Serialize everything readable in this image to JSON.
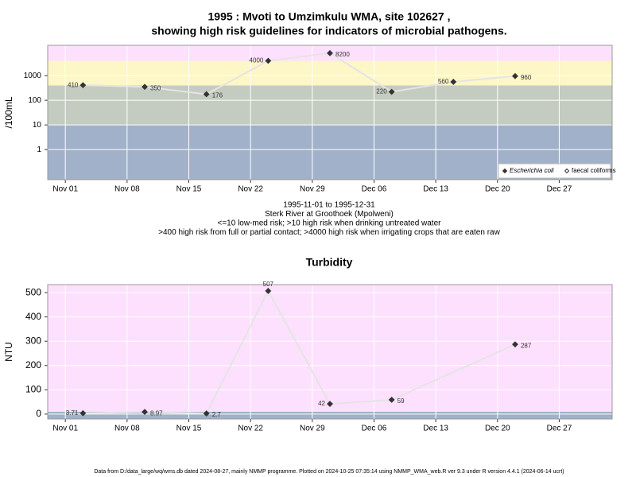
{
  "chart_data": [
    {
      "type": "line",
      "title": [
        "1995 : Mvoti to Umzimkulu WMA, site 102627 ,",
        "showing high risk guidelines for indicators of microbial pathogens."
      ],
      "ylabel": "/100mL",
      "log_y": true,
      "grid": true,
      "legend": "bottom-right",
      "line_color": "#e4e4e4",
      "bands": {
        "breaks": [
          10,
          400,
          4000
        ],
        "colors": [
          "#a1b1c9",
          "#c4ccc1",
          "#fdf6c6",
          "#fde0fd"
        ]
      },
      "x": [
        "1995-11-03",
        "1995-11-10",
        "1995-11-17",
        "1995-11-24",
        "1995-12-01",
        "1995-12-08",
        "1995-12-15",
        "1995-12-22"
      ],
      "series": [
        {
          "name": "Escherichia coli",
          "color": "#333333",
          "filled": true,
          "values": [
            410,
            350,
            176,
            4000,
            8200,
            220,
            560,
            960
          ]
        },
        {
          "name": "faecal coliforms",
          "color": "#333333",
          "filled": false,
          "values": [
            null,
            null,
            null,
            null,
            null,
            null,
            null,
            null
          ]
        }
      ],
      "xlim": [
        "1995-10-30",
        "1996-01-02"
      ],
      "xticks": [
        {
          "value": "1995-11-01",
          "label": "Nov 01"
        },
        {
          "value": "1995-11-08",
          "label": "Nov 08"
        },
        {
          "value": "1995-11-15",
          "label": "Nov 15"
        },
        {
          "value": "1995-11-22",
          "label": "Nov 22"
        },
        {
          "value": "1995-11-29",
          "label": "Nov 29"
        },
        {
          "value": "1995-12-06",
          "label": "Dec 06"
        },
        {
          "value": "1995-12-13",
          "label": "Dec 13"
        },
        {
          "value": "1995-12-20",
          "label": "Dec 20"
        },
        {
          "value": "1995-12-27",
          "label": "Dec 27"
        }
      ],
      "ylim": [
        0.06,
        17000
      ],
      "yticks": [
        1,
        10,
        100,
        1000
      ],
      "notes": [
        "1995-11-01 to 1995-12-31",
        "Sterk River at Groothoek (Mpolweni)",
        "<=10 low-med risk; >10 high risk when drinking untreated water",
        ">400 high risk from full or partial contact; >4000 high risk when irrigating crops that are eaten raw"
      ]
    },
    {
      "type": "line",
      "title": [
        "Turbidity"
      ],
      "ylabel": "NTU",
      "log_y": false,
      "grid": true,
      "line_color": "#e4e4e4",
      "bands": {
        "breaks": [
          10
        ],
        "colors": [
          "#a1b1c9",
          "#fde0fd"
        ]
      },
      "x": [
        "1995-11-03",
        "1995-11-10",
        "1995-11-17",
        "1995-11-24",
        "1995-12-01",
        "1995-12-08",
        "1995-12-22"
      ],
      "series": [
        {
          "name": "Turbidity",
          "color": "#333333",
          "filled": true,
          "values": [
            3.71,
            8.97,
            2.7,
            507,
            42,
            59,
            287
          ]
        }
      ],
      "xlim": [
        "1995-10-30",
        "1996-01-02"
      ],
      "xticks": [
        {
          "value": "1995-11-01",
          "label": "Nov 01"
        },
        {
          "value": "1995-11-08",
          "label": "Nov 08"
        },
        {
          "value": "1995-11-15",
          "label": "Nov 15"
        },
        {
          "value": "1995-11-22",
          "label": "Nov 22"
        },
        {
          "value": "1995-11-29",
          "label": "Nov 29"
        },
        {
          "value": "1995-12-06",
          "label": "Dec 06"
        },
        {
          "value": "1995-12-13",
          "label": "Dec 13"
        },
        {
          "value": "1995-12-20",
          "label": "Dec 20"
        },
        {
          "value": "1995-12-27",
          "label": "Dec 27"
        }
      ],
      "ylim": [
        -20,
        533
      ],
      "yticks": [
        0,
        100,
        200,
        300,
        400,
        500
      ]
    }
  ],
  "footer": "Data from D:/data_large/wq/wms.db dated 2024-08-27, mainly NMMP programme. Plotted on 2024-10-25 07:35:14 using NMMP_WMA_web.R ver 9.3 under R version 4.4.1 (2024-06-14 ucrt)"
}
